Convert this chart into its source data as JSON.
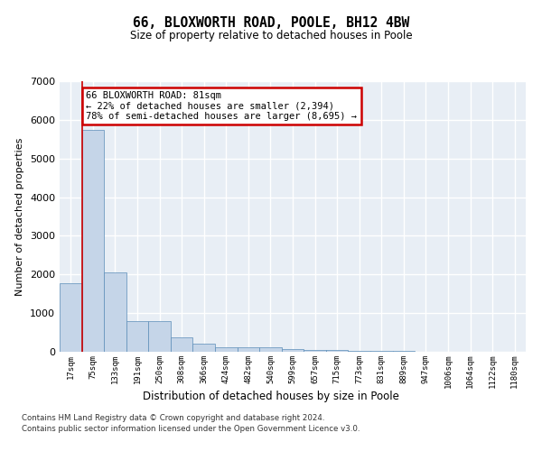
{
  "title": "66, BLOXWORTH ROAD, POOLE, BH12 4BW",
  "subtitle": "Size of property relative to detached houses in Poole",
  "xlabel": "Distribution of detached houses by size in Poole",
  "ylabel": "Number of detached properties",
  "categories": [
    "17sqm",
    "75sqm",
    "133sqm",
    "191sqm",
    "250sqm",
    "308sqm",
    "366sqm",
    "424sqm",
    "482sqm",
    "540sqm",
    "599sqm",
    "657sqm",
    "715sqm",
    "773sqm",
    "831sqm",
    "889sqm",
    "947sqm",
    "1006sqm",
    "1064sqm",
    "1122sqm",
    "1180sqm"
  ],
  "values": [
    1780,
    5750,
    2060,
    790,
    790,
    370,
    210,
    120,
    110,
    110,
    80,
    50,
    40,
    30,
    20,
    15,
    10,
    8,
    5,
    3,
    2
  ],
  "bar_color": "#c5d5e8",
  "bar_edge_color": "#5b8db8",
  "annotation_text": "66 BLOXWORTH ROAD: 81sqm\n← 22% of detached houses are smaller (2,394)\n78% of semi-detached houses are larger (8,695) →",
  "annotation_box_color": "#ffffff",
  "annotation_box_edge_color": "#cc0000",
  "vline_color": "#cc0000",
  "vline_x_index": 1,
  "ylim": [
    0,
    7000
  ],
  "yticks": [
    0,
    1000,
    2000,
    3000,
    4000,
    5000,
    6000,
    7000
  ],
  "background_color": "#e8eef5",
  "grid_color": "#ffffff",
  "footer_line1": "Contains HM Land Registry data © Crown copyright and database right 2024.",
  "footer_line2": "Contains public sector information licensed under the Open Government Licence v3.0."
}
